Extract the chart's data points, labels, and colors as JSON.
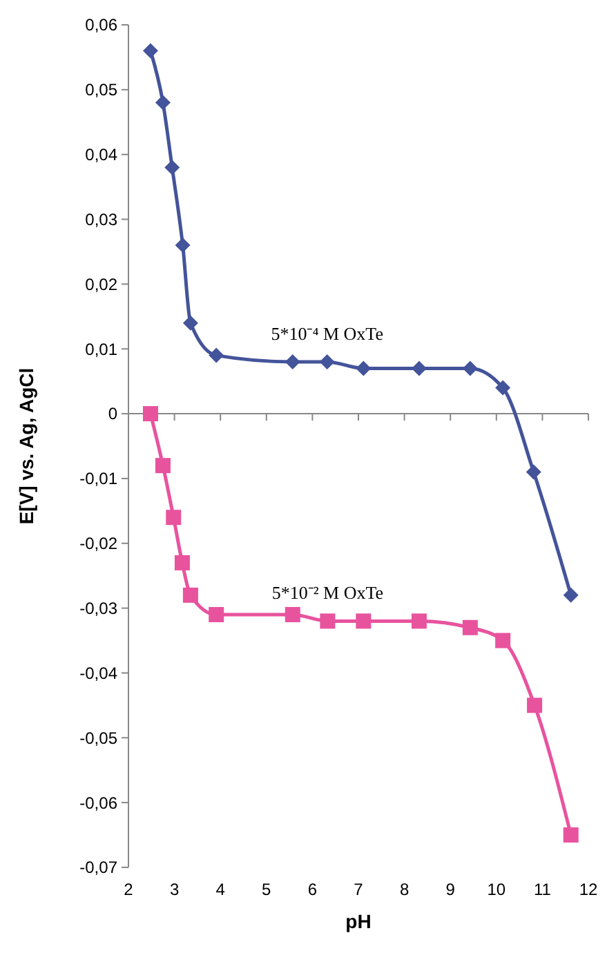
{
  "chart_data": {
    "type": "line",
    "xlabel": "pH",
    "ylabel": "E[V] vs. Ag, AgCl",
    "xlim": [
      2,
      12
    ],
    "xticks": [
      2,
      3,
      4,
      5,
      6,
      7,
      8,
      9,
      10,
      11,
      12
    ],
    "ylim": [
      -0.07,
      0.06
    ],
    "yticks": [
      {
        "value": -0.07,
        "label": "-0,07"
      },
      {
        "value": -0.06,
        "label": "-0,06"
      },
      {
        "value": -0.05,
        "label": "-0,05"
      },
      {
        "value": -0.04,
        "label": "-0,04"
      },
      {
        "value": -0.03,
        "label": "-0,03"
      },
      {
        "value": -0.02,
        "label": "-0,02"
      },
      {
        "value": -0.01,
        "label": "-0,01"
      },
      {
        "value": 0,
        "label": "0"
      },
      {
        "value": 0.01,
        "label": "0,01"
      },
      {
        "value": 0.02,
        "label": "0,02"
      },
      {
        "value": 0.03,
        "label": "0,03"
      },
      {
        "value": 0.04,
        "label": "0,04"
      },
      {
        "value": 0.05,
        "label": "0,05"
      },
      {
        "value": 0.06,
        "label": "0,06"
      }
    ],
    "series": [
      {
        "name": "5*10⁻⁴ M OxTe",
        "color": "#44549a",
        "marker": "diamond",
        "x": [
          2.48,
          2.75,
          2.95,
          3.18,
          3.35,
          3.91,
          5.57,
          6.32,
          7.11,
          8.32,
          9.43,
          10.14,
          10.81,
          11.62
        ],
        "values": [
          0.056,
          0.048,
          0.038,
          0.026,
          0.014,
          0.009,
          0.008,
          0.008,
          0.007,
          0.007,
          0.007,
          0.004,
          -0.009,
          -0.028
        ]
      },
      {
        "name": "5*10⁻² M OxTe",
        "color": "#e8539e",
        "marker": "square",
        "x": [
          2.48,
          2.75,
          2.98,
          3.17,
          3.35,
          3.91,
          5.57,
          6.33,
          7.11,
          8.32,
          9.43,
          10.14,
          10.83,
          11.62
        ],
        "values": [
          0,
          -0.008,
          -0.016,
          -0.023,
          -0.028,
          -0.031,
          -0.031,
          -0.032,
          -0.032,
          -0.032,
          -0.033,
          -0.035,
          -0.045,
          -0.065
        ]
      }
    ]
  }
}
